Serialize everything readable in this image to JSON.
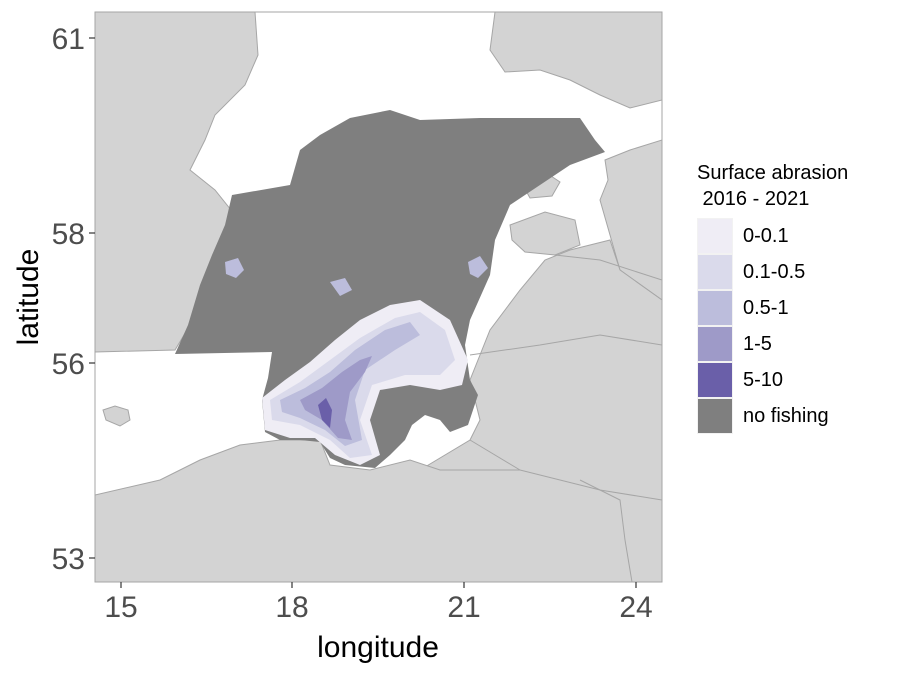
{
  "chart_data": {
    "type": "heatmap",
    "title": "",
    "xlabel": "longitude",
    "ylabel": "latitude",
    "xlim": [
      14.6,
      24.3
    ],
    "ylim": [
      52.6,
      61.35
    ],
    "x_ticks": [
      "15",
      "18",
      "21",
      "24"
    ],
    "y_ticks": [
      "61",
      "58",
      "56",
      "53"
    ],
    "grid": false,
    "legend_position": "right",
    "legend": {
      "title": "Surface abrasion\n 2016 - 2021",
      "categories": [
        {
          "label": "0-0.1",
          "color": "#efedf5"
        },
        {
          "label": "0.1-0.5",
          "color": "#dadaeb"
        },
        {
          "label": "0.5-1",
          "color": "#bcbddc"
        },
        {
          "label": "1-5",
          "color": "#9e9ac8"
        },
        {
          "label": "5-10",
          "color": "#6a5fa9"
        },
        {
          "label": "no fishing",
          "color": "#7f7f7f"
        }
      ]
    }
  },
  "colors": {
    "land": "#d3d3d3",
    "land_border": "#a6a6a6",
    "sea": "#ffffff",
    "assessed_area": "#7f7f7f"
  }
}
